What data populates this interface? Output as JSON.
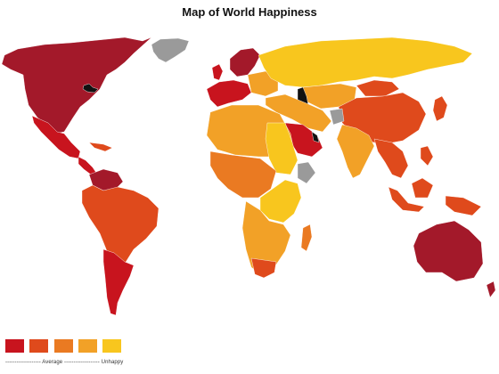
{
  "title": "Map of World Happiness",
  "legend": {
    "swatch_colors": [
      "#c8141e",
      "#df4a1c",
      "#ea7a22",
      "#f2a127",
      "#f8c61e"
    ],
    "scale_text": "------------------- Average ------------------- Unhappy"
  },
  "colors": {
    "happiest": "#a3192a",
    "very_happy": "#c8141e",
    "happy": "#df4a1c",
    "above_average": "#ea7a22",
    "average": "#f2a127",
    "unhappy": "#f8c61e",
    "no_data": "#9a9a9a",
    "water": "#111111"
  }
}
